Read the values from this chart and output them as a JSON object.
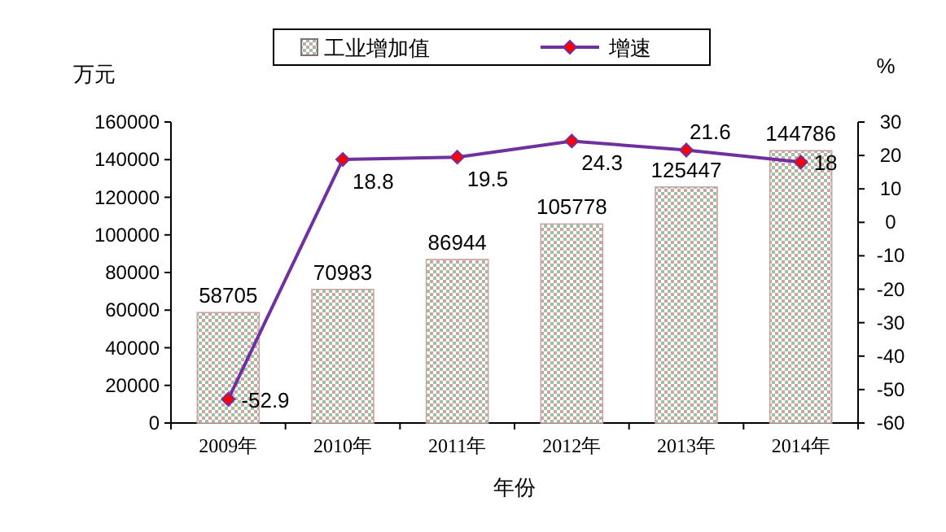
{
  "chart_data": {
    "type": "bar",
    "xlabel": "年份",
    "ylabel": "万元",
    "y2label": "%",
    "categories": [
      "2009年",
      "2010年",
      "2011年",
      "2012年",
      "2013年",
      "2014年"
    ],
    "series": [
      {
        "name": "工业增加值",
        "color": "#c8a4a4",
        "values": [
          58705,
          70983,
          86944,
          105778,
          125447,
          144786
        ]
      },
      {
        "name": "增速",
        "type": "line",
        "axis": "y2",
        "color": "#7030a0",
        "values": [
          -52.9,
          18.8,
          19.5,
          24.3,
          21.6,
          18
        ]
      }
    ],
    "ylim": [
      0,
      160000
    ],
    "yticks": [
      0,
      20000,
      40000,
      60000,
      80000,
      100000,
      120000,
      140000,
      160000
    ],
    "y2lim": [
      -60,
      30
    ],
    "y2ticks": [
      -60,
      -50,
      -40,
      -30,
      -20,
      -10,
      0,
      10,
      20,
      30
    ],
    "marker": "diamond",
    "data_labels": true,
    "legend": "top",
    "grid": false
  }
}
